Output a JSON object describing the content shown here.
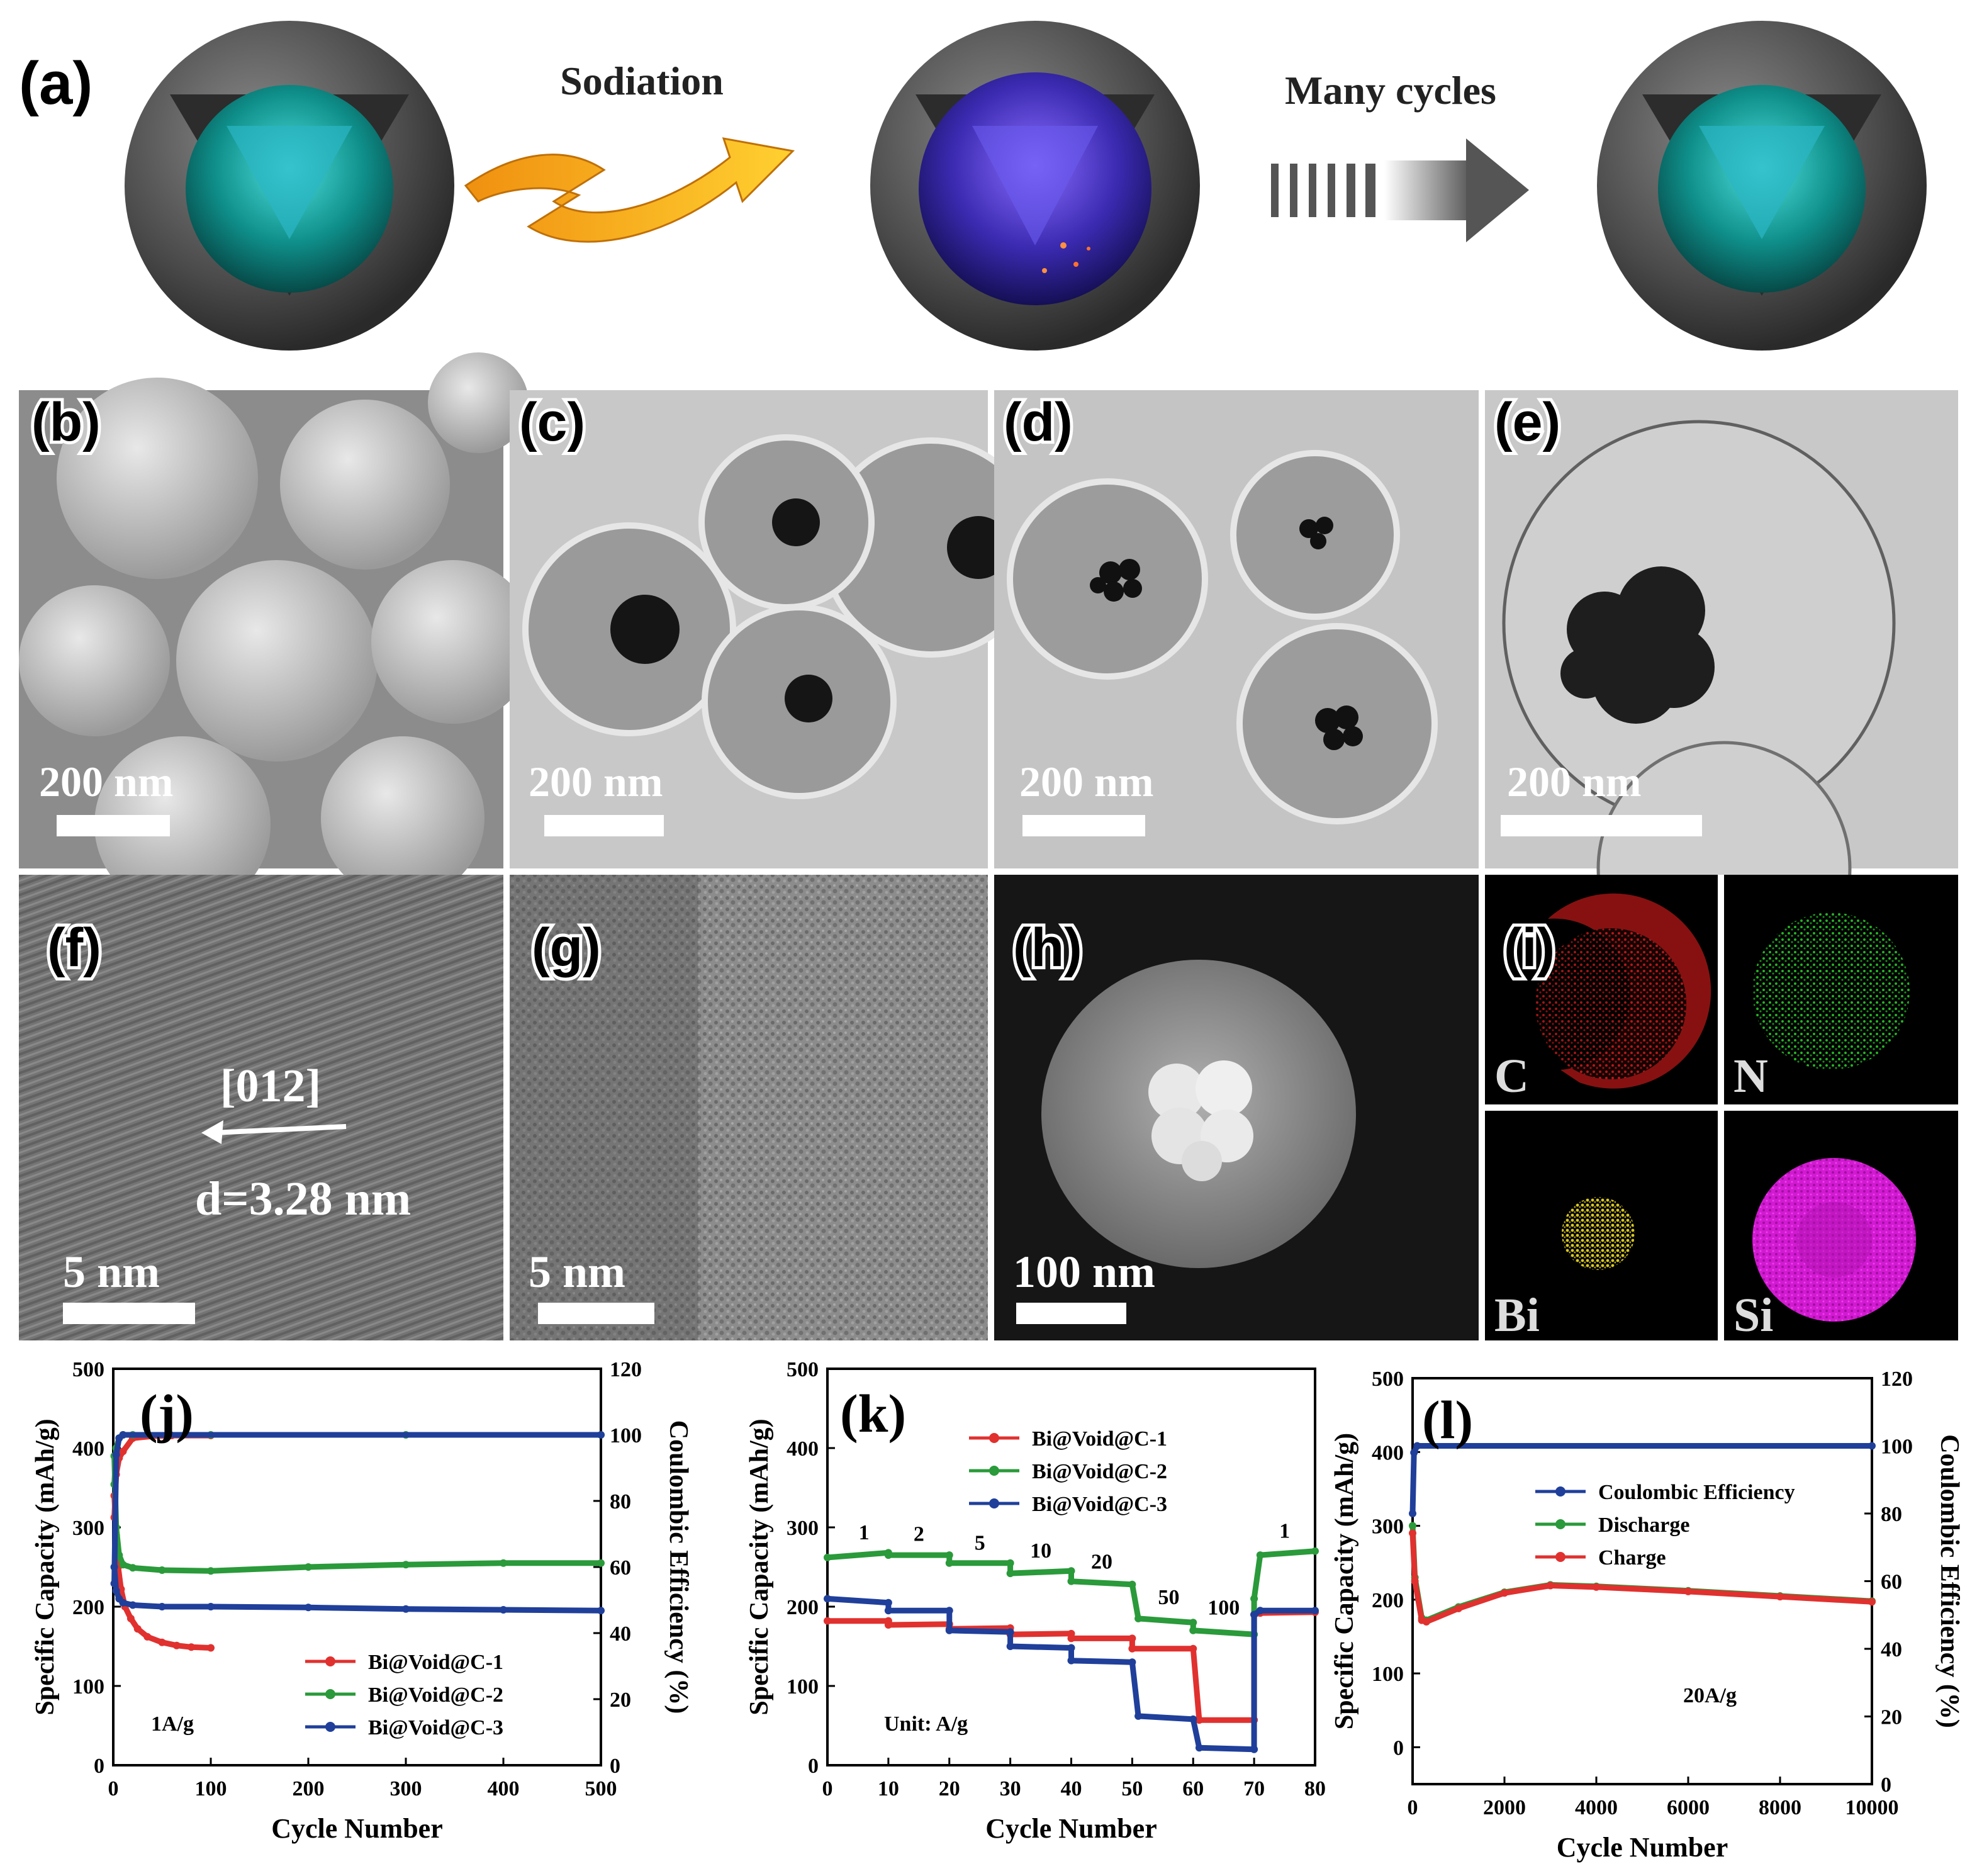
{
  "panel_a": {
    "label": "(a)",
    "step1": "Sodiation",
    "step2": "Many cycles"
  },
  "micrographs": [
    {
      "label": "(b)",
      "scale": "200 nm"
    },
    {
      "label": "(c)",
      "scale": "200 nm"
    },
    {
      "label": "(d)",
      "scale": "200 nm"
    },
    {
      "label": "(e)",
      "scale": "200 nm"
    },
    {
      "label": "(f)",
      "scale": "5 nm",
      "direction": "[012]",
      "spacing": "d=3.28 nm"
    },
    {
      "label": "(g)",
      "scale": "5 nm"
    },
    {
      "label": "(h)",
      "scale": "100 nm"
    },
    {
      "label": "(i)",
      "elements": [
        "C",
        "N",
        "Bi",
        "Si"
      ]
    }
  ],
  "colors": {
    "red": "#e0312f",
    "green": "#2a9a3a",
    "blue": "#1f3f9a",
    "map_C": "#c01818",
    "map_N": "#23b323",
    "map_Bi": "#d8c820",
    "map_Si": "#d21ad2"
  },
  "chart_data": [
    {
      "panel": "(j)",
      "type": "line",
      "xlabel": "Cycle Number",
      "ylabel": "Specific Capacity (mAh/g)",
      "y2label": "Coulombic Efficiency (%)",
      "xlim": [
        0,
        500
      ],
      "ylim": [
        0,
        500
      ],
      "y2lim": [
        0,
        120
      ],
      "xticks": [
        "0",
        "100",
        "200",
        "300",
        "400",
        "500"
      ],
      "yticks": [
        "0",
        "100",
        "200",
        "300",
        "400",
        "500"
      ],
      "y2ticks": [
        "0",
        "20",
        "40",
        "60",
        "80",
        "100",
        "120"
      ],
      "annotation": "1A/g",
      "legend_position": "bottom-right",
      "legend": [
        "Bi@Void@C-1",
        "Bi@Void@C-2",
        "Bi@Void@C-3"
      ],
      "series": [
        {
          "name": "Bi@Void@C-1",
          "axis": "capacity",
          "x": [
            1,
            3,
            5,
            8,
            12,
            18,
            25,
            35,
            50,
            65,
            80,
            100
          ],
          "y": [
            340,
            290,
            250,
            222,
            200,
            185,
            172,
            162,
            155,
            151,
            149,
            148
          ]
        },
        {
          "name": "Bi@Void@C-1",
          "axis": "efficiency",
          "x": [
            1,
            3,
            6,
            10,
            20,
            40,
            60,
            100
          ],
          "y": [
            75,
            88,
            93,
            95,
            99,
            99.6,
            99.8,
            99.8
          ]
        },
        {
          "name": "Bi@Void@C-2",
          "axis": "capacity",
          "x": [
            1,
            3,
            6,
            10,
            20,
            50,
            100,
            200,
            300,
            400,
            500
          ],
          "y": [
            390,
            300,
            265,
            253,
            249,
            246,
            245,
            250,
            253,
            255,
            255
          ]
        },
        {
          "name": "Bi@Void@C-2",
          "axis": "efficiency",
          "x": [
            1,
            3,
            6,
            10,
            20,
            100,
            300,
            500
          ],
          "y": [
            85,
            96,
            99,
            100,
            100,
            100,
            100,
            100
          ]
        },
        {
          "name": "Bi@Void@C-3",
          "axis": "capacity",
          "x": [
            1,
            3,
            6,
            10,
            20,
            50,
            100,
            200,
            300,
            400,
            500
          ],
          "y": [
            250,
            220,
            210,
            205,
            202,
            200,
            200,
            199,
            197,
            196,
            195
          ]
        },
        {
          "name": "Bi@Void@C-3",
          "axis": "efficiency",
          "x": [
            1,
            3,
            6,
            10,
            500
          ],
          "y": [
            55,
            94,
            99,
            100,
            100
          ]
        }
      ]
    },
    {
      "panel": "(k)",
      "type": "line",
      "xlabel": "Cycle Number",
      "ylabel": "Specific Capacity (mAh/g)",
      "xlim": [
        0,
        80
      ],
      "ylim": [
        0,
        500
      ],
      "xticks": [
        "0",
        "10",
        "20",
        "30",
        "40",
        "50",
        "60",
        "70",
        "80"
      ],
      "yticks": [
        "0",
        "100",
        "200",
        "300",
        "400",
        "500"
      ],
      "annotation": "Unit: A/g",
      "rate_labels": [
        {
          "text": "1",
          "x": 6,
          "y": 285
        },
        {
          "text": "2",
          "x": 15,
          "y": 283
        },
        {
          "text": "5",
          "x": 25,
          "y": 272
        },
        {
          "text": "10",
          "x": 35,
          "y": 262
        },
        {
          "text": "20",
          "x": 45,
          "y": 248
        },
        {
          "text": "50",
          "x": 56,
          "y": 203
        },
        {
          "text": "100",
          "x": 65,
          "y": 190
        },
        {
          "text": "1",
          "x": 75,
          "y": 287
        }
      ],
      "legend_position": "top-left",
      "legend": [
        "Bi@Void@C-1",
        "Bi@Void@C-2",
        "Bi@Void@C-3"
      ],
      "series": [
        {
          "name": "Bi@Void@C-1",
          "x": [
            0,
            10,
            10,
            20,
            20,
            30,
            30,
            40,
            40,
            50,
            50,
            60,
            61,
            70,
            70,
            71,
            80
          ],
          "y": [
            182,
            182,
            177,
            178,
            172,
            173,
            165,
            166,
            160,
            160,
            147,
            147,
            57,
            57,
            190,
            192,
            193
          ]
        },
        {
          "name": "Bi@Void@C-2",
          "x": [
            0,
            10,
            10,
            20,
            20,
            30,
            30,
            40,
            40,
            50,
            51,
            60,
            60,
            70,
            70,
            71,
            80
          ],
          "y": [
            262,
            268,
            265,
            265,
            255,
            255,
            242,
            245,
            232,
            228,
            185,
            180,
            170,
            165,
            210,
            265,
            270
          ]
        },
        {
          "name": "Bi@Void@C-3",
          "x": [
            0,
            10,
            10,
            20,
            20,
            30,
            30,
            40,
            40,
            50,
            51,
            60,
            61,
            70,
            70,
            71,
            80
          ],
          "y": [
            210,
            205,
            195,
            195,
            170,
            168,
            150,
            148,
            132,
            130,
            62,
            58,
            22,
            20,
            190,
            195,
            195
          ]
        }
      ]
    },
    {
      "panel": "(l)",
      "type": "line",
      "xlabel": "Cycle Number",
      "ylabel": "Specific Capacity (mAh/g)",
      "y2label": "Coulombic Efficiency (%)",
      "xlim": [
        0,
        10000
      ],
      "ylim": [
        -50,
        500
      ],
      "y2lim": [
        0,
        120
      ],
      "xticks": [
        "0",
        "2000",
        "4000",
        "6000",
        "8000",
        "10000"
      ],
      "yticks": [
        "0",
        "100",
        "200",
        "300",
        "400",
        "500"
      ],
      "y2ticks": [
        "0",
        "20",
        "40",
        "60",
        "80",
        "100",
        "120"
      ],
      "annotation": "20A/g",
      "legend_position": "top-center",
      "legend": [
        "Coulombic Efficiency",
        "Discharge",
        "Charge"
      ],
      "series": [
        {
          "name": "Coulombic Efficiency",
          "axis": "efficiency",
          "x": [
            0,
            30,
            100,
            10000
          ],
          "y": [
            80,
            98,
            100,
            100
          ]
        },
        {
          "name": "Discharge",
          "axis": "capacity",
          "x": [
            0,
            50,
            200,
            300,
            1000,
            2000,
            3000,
            4000,
            6000,
            8000,
            10000
          ],
          "y": [
            300,
            230,
            175,
            172,
            190,
            210,
            220,
            218,
            212,
            205,
            198
          ]
        },
        {
          "name": "Charge",
          "axis": "capacity",
          "x": [
            0,
            50,
            200,
            300,
            1000,
            2000,
            3000,
            4000,
            6000,
            8000,
            10000
          ],
          "y": [
            290,
            225,
            172,
            170,
            188,
            209,
            219,
            217,
            211,
            204,
            197
          ]
        }
      ]
    }
  ]
}
